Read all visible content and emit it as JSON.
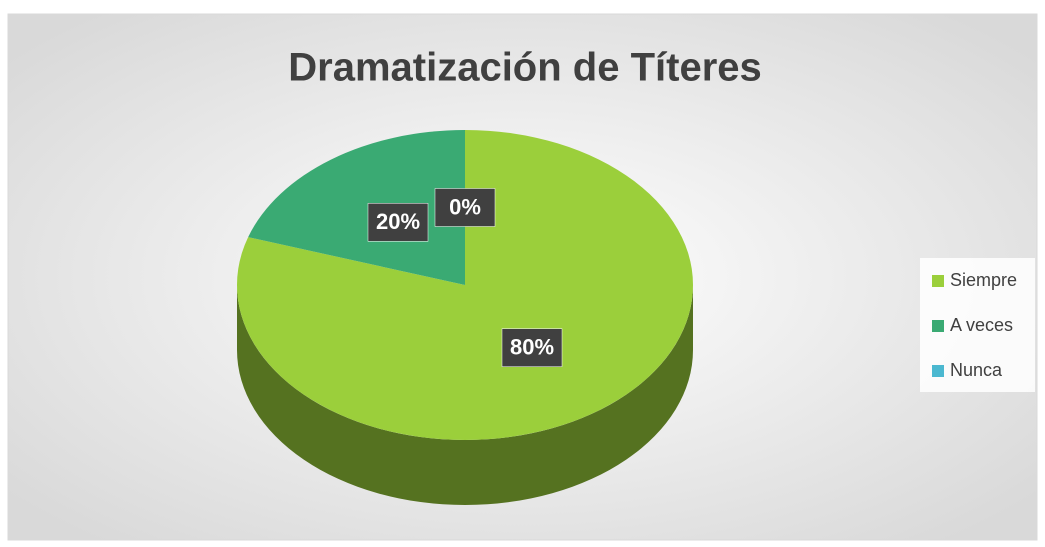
{
  "chart_data": {
    "type": "pie",
    "title": "Dramatización de Títeres",
    "categories": [
      "Siempre",
      "A veces",
      "Nunca"
    ],
    "values": [
      80,
      20,
      0
    ],
    "value_labels": [
      "80%",
      "20%",
      "0%"
    ],
    "colors": [
      "#9bcf3b",
      "#3aaa73",
      "#4bb8d0"
    ],
    "legend": "right"
  }
}
